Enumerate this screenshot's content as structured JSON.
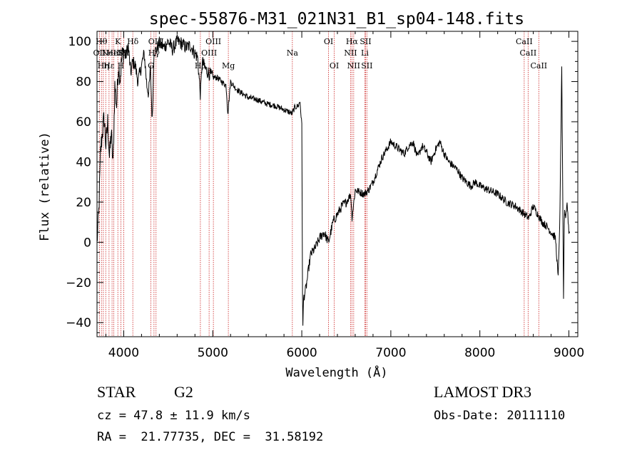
{
  "chart_data": {
    "type": "line",
    "title": "spec-55876-M31_021N31_B1_sp04-148.fits",
    "xlabel": "Wavelength (Å)",
    "ylabel": "Flux (relative)",
    "xlim": [
      3700,
      9100
    ],
    "ylim": [
      -47,
      105
    ],
    "xticks": [
      4000,
      5000,
      6000,
      7000,
      8000,
      9000
    ],
    "yticks": [
      -40,
      -20,
      0,
      20,
      40,
      60,
      80,
      100
    ],
    "grid": false,
    "series": [
      {
        "x": [
          3700,
          3720,
          3740,
          3760,
          3780,
          3800,
          3820,
          3840,
          3860,
          3880,
          3900,
          3920,
          3940,
          3960,
          3980,
          4000,
          4020,
          4050,
          4080,
          4100,
          4130,
          4160,
          4200,
          4230,
          4260,
          4280,
          4300,
          4320,
          4340,
          4360,
          4400,
          4450,
          4500,
          4550,
          4600,
          4650,
          4700,
          4750,
          4800,
          4830,
          4862,
          4880,
          4920,
          4960,
          5000,
          5050,
          5100,
          5150,
          5170,
          5200,
          5250,
          5300,
          5400,
          5500,
          5600,
          5700,
          5800,
          5850,
          5890,
          5920,
          5960,
          5980,
          6000,
          6010,
          6020,
          6050,
          6080,
          6100,
          6150,
          6200,
          6250,
          6300,
          6350,
          6400,
          6450,
          6500,
          6550,
          6563,
          6600,
          6650,
          6700,
          6750,
          6800,
          6850,
          6900,
          6950,
          7000,
          7050,
          7100,
          7150,
          7200,
          7250,
          7300,
          7350,
          7400,
          7450,
          7500,
          7550,
          7600,
          7650,
          7700,
          7750,
          7800,
          7850,
          7900,
          7950,
          8000,
          8100,
          8200,
          8300,
          8400,
          8500,
          8550,
          8600,
          8650,
          8700,
          8750,
          8800,
          8850,
          8880,
          8900,
          8920,
          8940,
          8950,
          8960,
          8980,
          9000
        ],
        "values": [
          0,
          15,
          45,
          55,
          62,
          48,
          60,
          42,
          55,
          38,
          78,
          68,
          88,
          82,
          92,
          96,
          92,
          98,
          84,
          90,
          88,
          80,
          88,
          94,
          78,
          74,
          86,
          60,
          96,
          95,
          99,
          97,
          100,
          96,
          100,
          99,
          97,
          98,
          94,
          92,
          73,
          90,
          86,
          84,
          82,
          82,
          80,
          78,
          64,
          80,
          77,
          75,
          72,
          71,
          69,
          68,
          66,
          65,
          64,
          67,
          68,
          70,
          58,
          -46,
          -28,
          -22,
          -12,
          -6,
          -3,
          2,
          5,
          0,
          10,
          14,
          18,
          20,
          24,
          12,
          26,
          25,
          24,
          26,
          30,
          36,
          42,
          46,
          50,
          48,
          46,
          44,
          48,
          50,
          42,
          48,
          45,
          40,
          46,
          50,
          44,
          40,
          38,
          36,
          32,
          30,
          28,
          30,
          28,
          26,
          24,
          20,
          18,
          14,
          12,
          18,
          14,
          10,
          8,
          5,
          2,
          -18,
          15,
          88,
          -30,
          18,
          12,
          20,
          5
        ]
      }
    ],
    "lines": [
      {
        "wl": 3727,
        "label": "OII",
        "row": 2
      },
      {
        "wl": 3750,
        "label": "Hθ",
        "row": 1
      },
      {
        "wl": 3771,
        "label": "Hη",
        "row": 3
      },
      {
        "wl": 3798,
        "label": "",
        "row": 0
      },
      {
        "wl": 3835,
        "label": "Hε",
        "row": 3
      },
      {
        "wl": 3869,
        "label": "NeIII",
        "row": 2
      },
      {
        "wl": 3889,
        "label": "HeI",
        "row": 2
      },
      {
        "wl": 3934,
        "label": "K",
        "row": 1
      },
      {
        "wl": 3969,
        "label": "H",
        "row": 3
      },
      {
        "wl": 4000,
        "label": "SII",
        "row": 2
      },
      {
        "wl": 4102,
        "label": "Hδ",
        "row": 1
      },
      {
        "wl": 4305,
        "label": "G",
        "row": 3
      },
      {
        "wl": 4340,
        "label": "Hγ",
        "row": 2
      },
      {
        "wl": 4363,
        "label": "OIII",
        "row": 1
      },
      {
        "wl": 4861,
        "label": "Hβ",
        "row": 3
      },
      {
        "wl": 4959,
        "label": "OIII",
        "row": 2
      },
      {
        "wl": 5007,
        "label": "OIII",
        "row": 1
      },
      {
        "wl": 5175,
        "label": "Mg",
        "row": 3
      },
      {
        "wl": 5894,
        "label": "Na",
        "row": 2
      },
      {
        "wl": 6300,
        "label": "OI",
        "row": 1
      },
      {
        "wl": 6364,
        "label": "OI",
        "row": 3
      },
      {
        "wl": 6548,
        "label": "NII",
        "row": 2
      },
      {
        "wl": 6563,
        "label": "Hα",
        "row": 1
      },
      {
        "wl": 6583,
        "label": "NII",
        "row": 3
      },
      {
        "wl": 6708,
        "label": "Li",
        "row": 2
      },
      {
        "wl": 6716,
        "label": "SII",
        "row": 1
      },
      {
        "wl": 6731,
        "label": "SII",
        "row": 3
      },
      {
        "wl": 8498,
        "label": "CaII",
        "row": 1
      },
      {
        "wl": 8542,
        "label": "CaII",
        "row": 2
      },
      {
        "wl": 8662,
        "label": "CaII",
        "row": 3
      }
    ]
  },
  "info": {
    "object_type": "STAR",
    "object_class": "G2",
    "survey": "LAMOST DR3",
    "velocity": "cz = 47.8 ± 11.9 km/s",
    "obs_date": "Obs-Date: 20111110",
    "radec": "RA =  21.77735, DEC =  31.58192"
  },
  "colors": {
    "spectrum": "#000000",
    "line_marker": "#cc2222",
    "axis": "#000000"
  }
}
